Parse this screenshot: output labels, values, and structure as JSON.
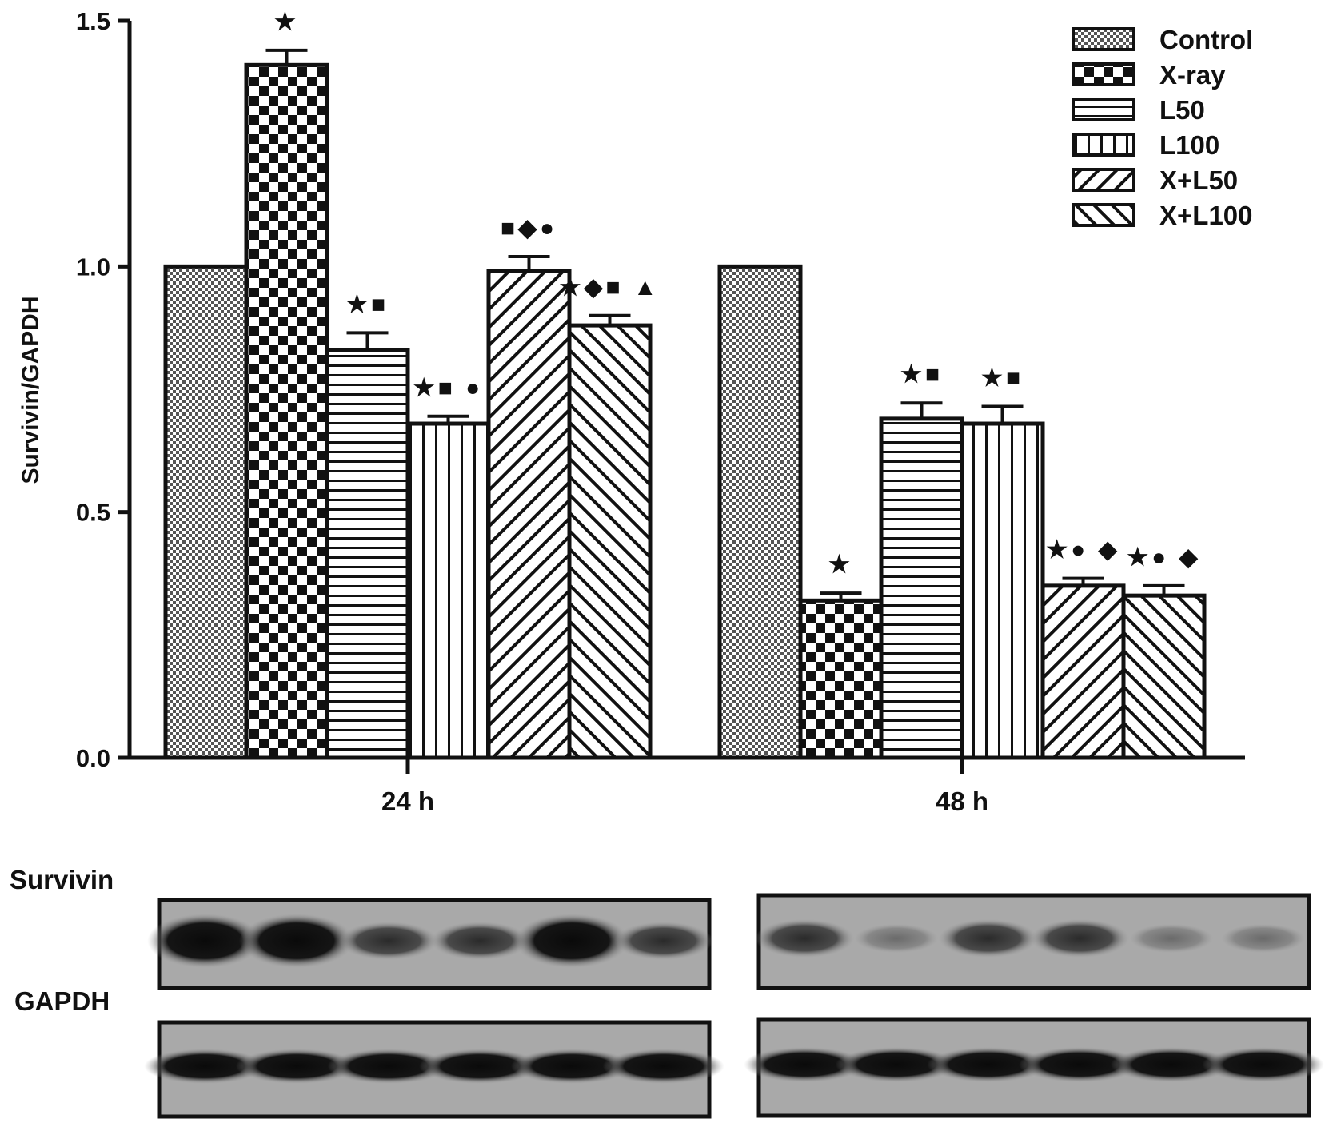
{
  "chart_data": {
    "type": "bar",
    "ylabel": "Survivin/GAPDH",
    "ylim": [
      0,
      1.5
    ],
    "yticks": [
      "0.0",
      "0.5",
      "1.0",
      "1.5"
    ],
    "categories": [
      "24 h",
      "48 h"
    ],
    "series": [
      {
        "name": "Control",
        "values": [
          1.0,
          1.0
        ],
        "errors": [
          0,
          0
        ],
        "markers": [
          "",
          ""
        ]
      },
      {
        "name": "X-ray",
        "values": [
          1.41,
          0.32
        ],
        "errors": [
          0.03,
          0.015
        ],
        "markers": [
          "★",
          "★"
        ]
      },
      {
        "name": "L50",
        "values": [
          0.83,
          0.69
        ],
        "errors": [
          0.035,
          0.032
        ],
        "markers": [
          "★■",
          "★■"
        ]
      },
      {
        "name": "L100",
        "values": [
          0.68,
          0.68
        ],
        "errors": [
          0.015,
          0.035
        ],
        "markers": [
          "★■ ●",
          "★■"
        ]
      },
      {
        "name": "X+L50",
        "values": [
          0.99,
          0.35
        ],
        "errors": [
          0.03,
          0.015
        ],
        "markers": [
          "■◆●",
          "★● ◆"
        ]
      },
      {
        "name": "X+L100",
        "values": [
          0.88,
          0.33
        ],
        "errors": [
          0.02,
          0.02
        ],
        "markers": [
          "★◆■ ▲",
          "★● ◆"
        ]
      }
    ],
    "legend": "top-right",
    "grid": false
  },
  "blot": {
    "labels": [
      "Survivin",
      "GAPDH"
    ]
  }
}
